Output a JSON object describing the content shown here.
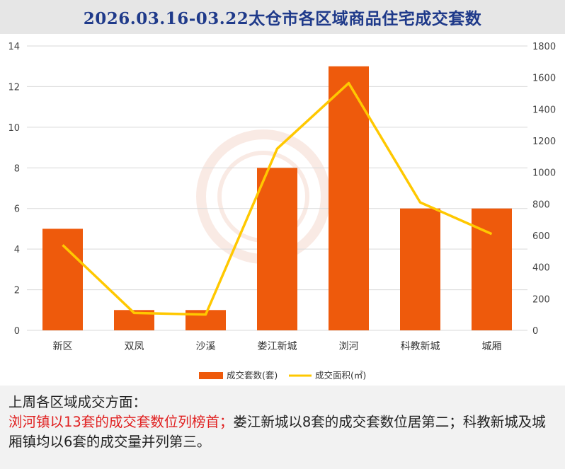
{
  "title": "2026.03.16-03.22太仓市各区域商品住宅成交套数",
  "chart_data": {
    "type": "bar+line",
    "categories": [
      "新区",
      "双凤",
      "沙溪",
      "娄江新城",
      "浏河",
      "科教新城",
      "城厢"
    ],
    "series": [
      {
        "name": "成交套数(套)",
        "type": "bar",
        "axis": "left",
        "values": [
          5,
          1,
          1,
          8,
          13,
          6,
          6
        ]
      },
      {
        "name": "成交面积(㎡)",
        "type": "line",
        "axis": "right",
        "values": [
          540,
          110,
          100,
          1150,
          1565,
          810,
          610
        ]
      }
    ],
    "y_left": {
      "min": 0,
      "max": 14,
      "ticks": [
        "0",
        "2",
        "4",
        "6",
        "8",
        "10",
        "12",
        "14"
      ]
    },
    "y_right": {
      "min": 0,
      "max": 1800,
      "ticks": [
        "0",
        "200",
        "400",
        "600",
        "800",
        "1000",
        "1200",
        "1400",
        "1600",
        "1800"
      ]
    },
    "grid": true,
    "legend": "bottom-center",
    "colors": {
      "bar": "#ee5a0c",
      "line": "#ffc800",
      "grid": "#d9d9d9",
      "title": "#1f3a8a"
    }
  },
  "summary": {
    "heading": "上周各区域成交方面：",
    "highlight": "浏河镇以13套的成交套数位列榜首；",
    "rest": "娄江新城以8套的成交套数位居第二；科教新城及城厢镇均以6套的成交量并列第三。"
  }
}
